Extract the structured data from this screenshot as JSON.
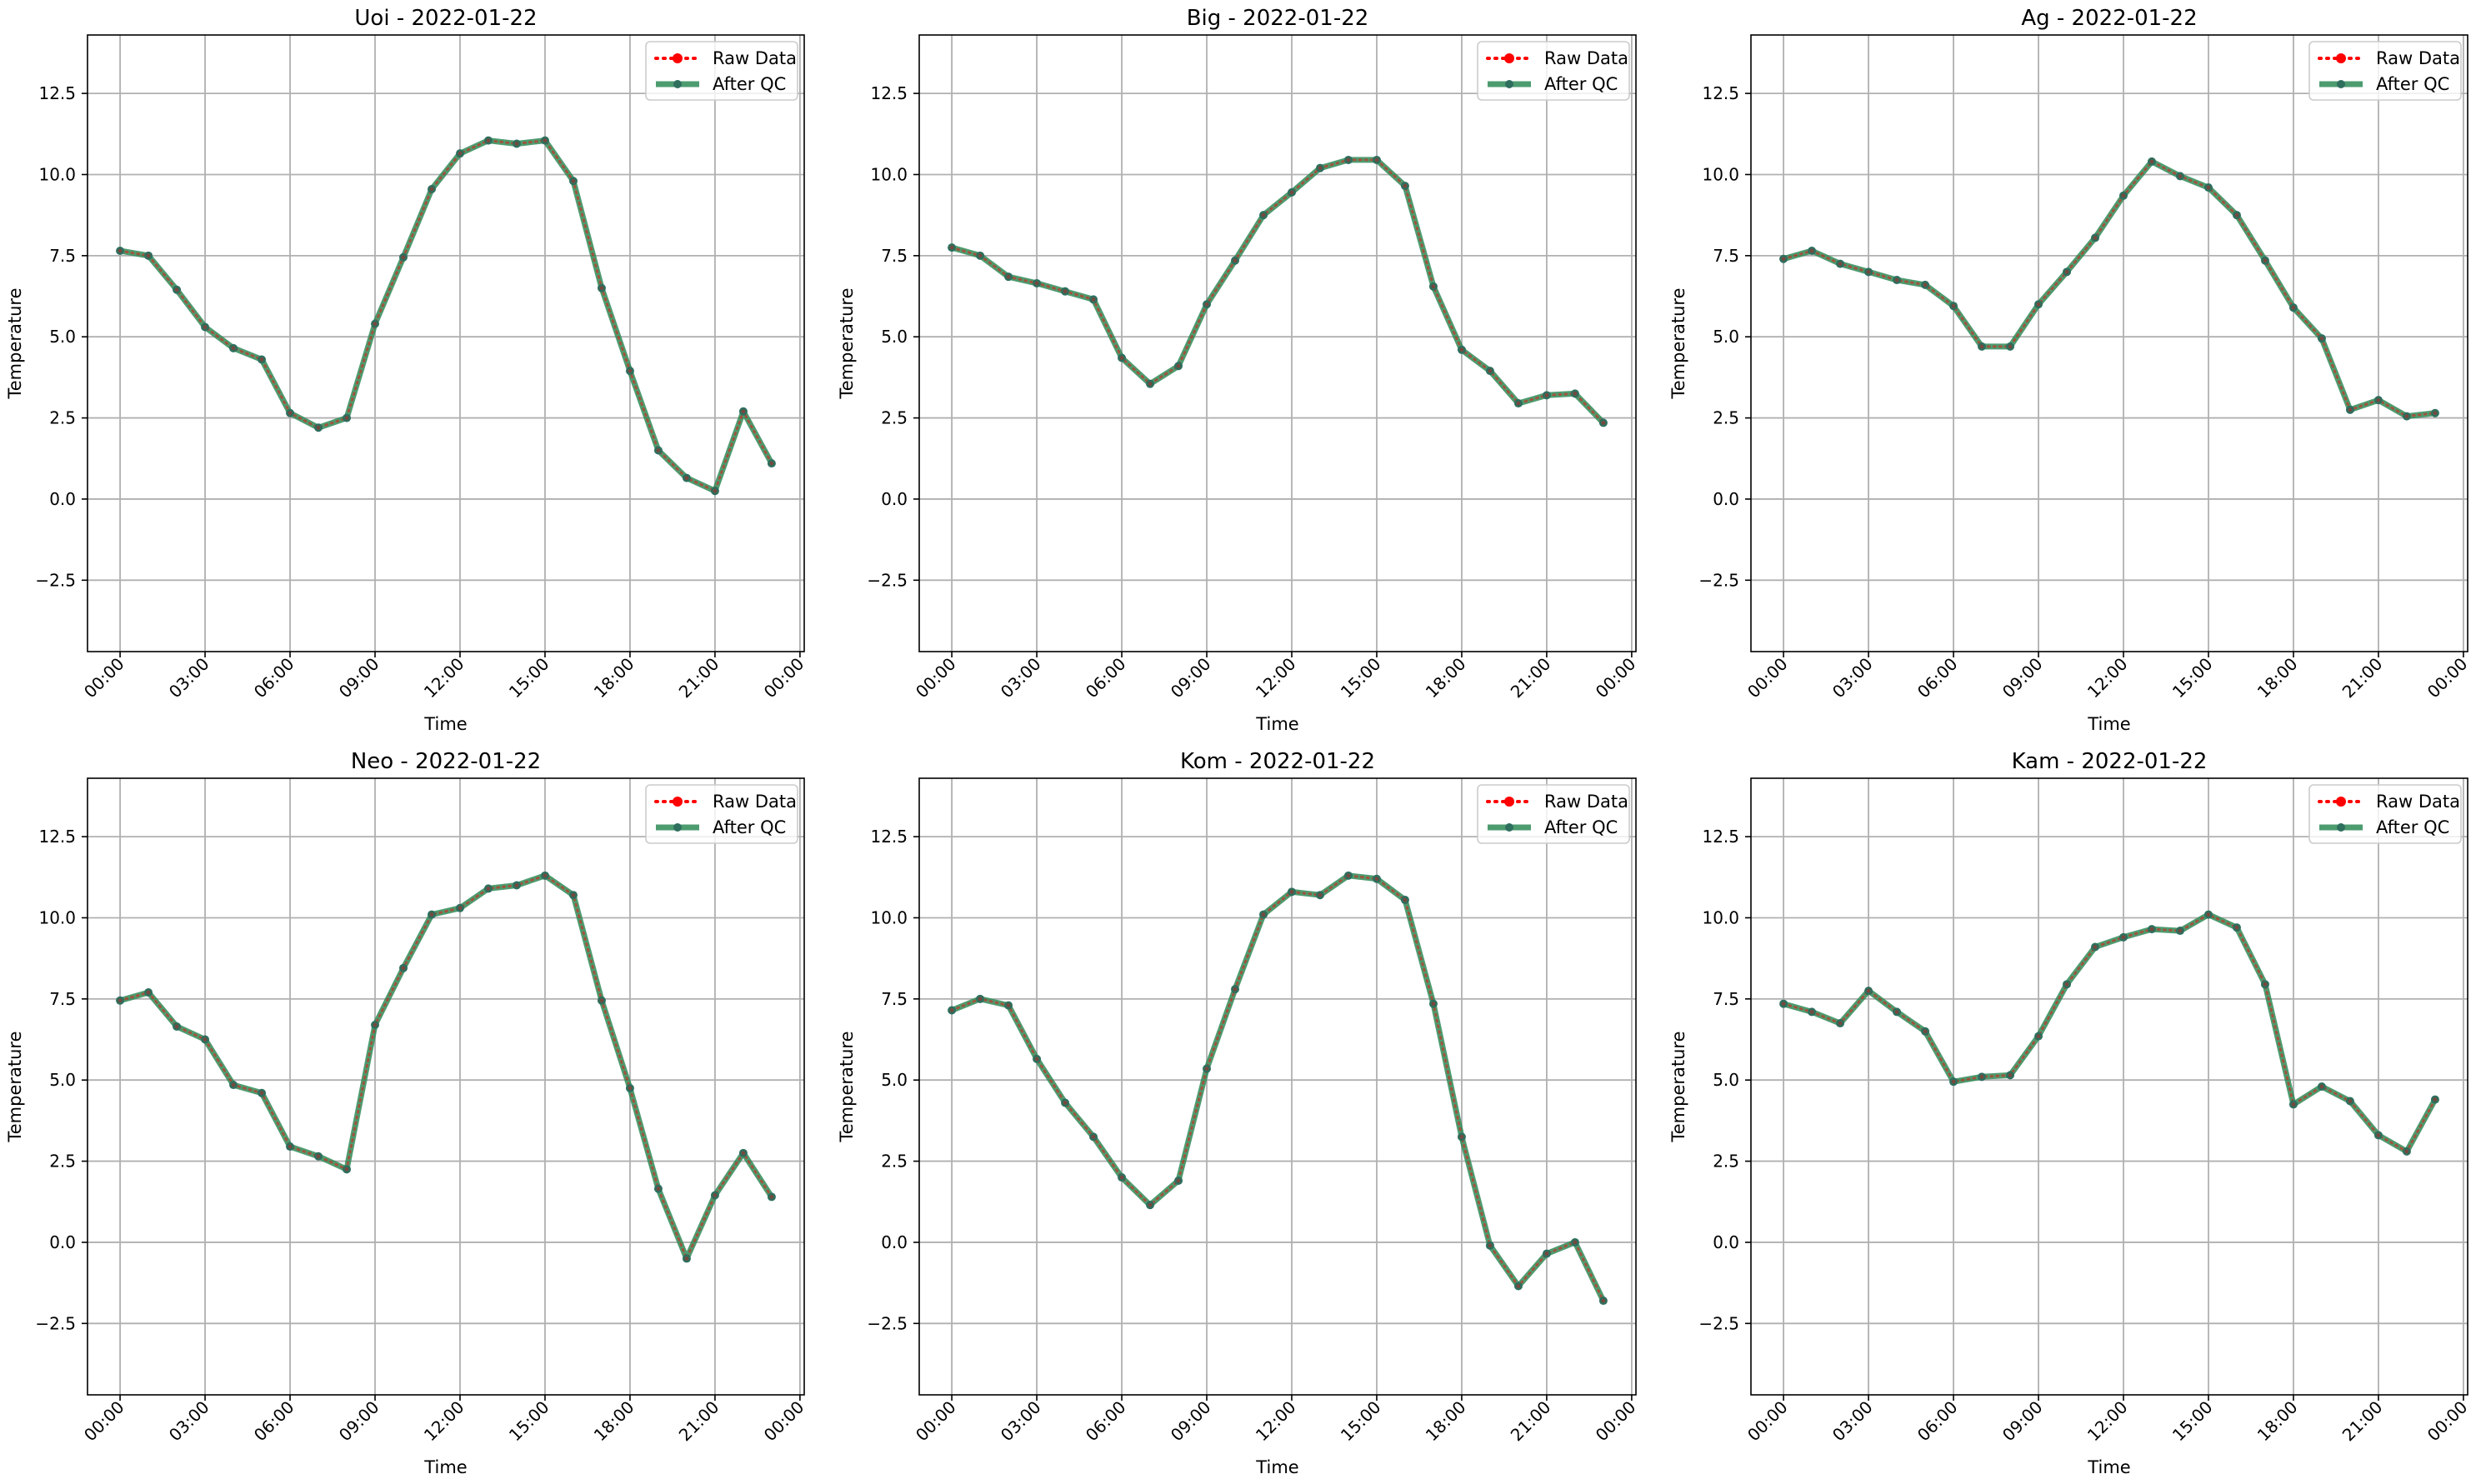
{
  "colors": {
    "raw": "#ff0000",
    "qc": "#2e8b57",
    "marker": "#2e6f5e",
    "grid": "#b0b0b0"
  },
  "chart_data": [
    {
      "type": "line",
      "title": "Uoi - 2022-01-22",
      "xlabel": "Time",
      "ylabel": "Temperature",
      "x_unit": "hour",
      "xticks": [
        "00:00",
        "03:00",
        "06:00",
        "09:00",
        "12:00",
        "15:00",
        "18:00",
        "21:00",
        "00:00"
      ],
      "yticks": [
        "−2.5",
        "0.0",
        "2.5",
        "5.0",
        "7.5",
        "10.0",
        "12.5"
      ],
      "ylim": [
        -4.7,
        14.3
      ],
      "xlim": [
        -1.15,
        24.15
      ],
      "grid": true,
      "legend_position": "top-right",
      "x": [
        0,
        1,
        2,
        3,
        4,
        5,
        6,
        7,
        8,
        9,
        10,
        11,
        12,
        13,
        14,
        15,
        16,
        17,
        18,
        19,
        20,
        21,
        22,
        23
      ],
      "series": [
        {
          "name": "Raw Data",
          "values": [
            7.65,
            7.5,
            6.45,
            5.3,
            4.65,
            4.3,
            2.65,
            2.2,
            2.5,
            5.4,
            7.45,
            9.55,
            10.65,
            11.05,
            10.95,
            11.05,
            9.8,
            6.5,
            3.95,
            1.5,
            0.65,
            0.25,
            2.7,
            1.1
          ]
        },
        {
          "name": "After QC",
          "values": [
            7.65,
            7.5,
            6.45,
            5.3,
            4.65,
            4.3,
            2.65,
            2.2,
            2.5,
            5.4,
            7.45,
            9.55,
            10.65,
            11.05,
            10.95,
            11.05,
            9.8,
            6.5,
            3.95,
            1.5,
            0.65,
            0.25,
            2.7,
            1.1
          ]
        }
      ]
    },
    {
      "type": "line",
      "title": "Big - 2022-01-22",
      "xlabel": "Time",
      "ylabel": "Temperature",
      "x_unit": "hour",
      "xticks": [
        "00:00",
        "03:00",
        "06:00",
        "09:00",
        "12:00",
        "15:00",
        "18:00",
        "21:00",
        "00:00"
      ],
      "yticks": [
        "−2.5",
        "0.0",
        "2.5",
        "5.0",
        "7.5",
        "10.0",
        "12.5"
      ],
      "ylim": [
        -4.7,
        14.3
      ],
      "xlim": [
        -1.15,
        24.15
      ],
      "grid": true,
      "legend_position": "top-right",
      "x": [
        0,
        1,
        2,
        3,
        4,
        5,
        6,
        7,
        8,
        9,
        10,
        11,
        12,
        13,
        14,
        15,
        16,
        17,
        18,
        19,
        20,
        21,
        22,
        23
      ],
      "series": [
        {
          "name": "Raw Data",
          "values": [
            7.75,
            7.5,
            6.85,
            6.65,
            6.4,
            6.15,
            4.35,
            3.55,
            4.1,
            6.0,
            7.35,
            8.75,
            9.45,
            10.2,
            10.45,
            10.45,
            9.65,
            6.55,
            4.6,
            3.95,
            2.95,
            3.2,
            3.25,
            2.35
          ]
        },
        {
          "name": "After QC",
          "values": [
            7.75,
            7.5,
            6.85,
            6.65,
            6.4,
            6.15,
            4.35,
            3.55,
            4.1,
            6.0,
            7.35,
            8.75,
            9.45,
            10.2,
            10.45,
            10.45,
            9.65,
            6.55,
            4.6,
            3.95,
            2.95,
            3.2,
            3.25,
            2.35
          ]
        }
      ]
    },
    {
      "type": "line",
      "title": "Ag - 2022-01-22",
      "xlabel": "Time",
      "ylabel": "Temperature",
      "x_unit": "hour",
      "xticks": [
        "00:00",
        "03:00",
        "06:00",
        "09:00",
        "12:00",
        "15:00",
        "18:00",
        "21:00",
        "00:00"
      ],
      "yticks": [
        "−2.5",
        "0.0",
        "2.5",
        "5.0",
        "7.5",
        "10.0",
        "12.5"
      ],
      "ylim": [
        -4.7,
        14.3
      ],
      "xlim": [
        -1.15,
        24.15
      ],
      "grid": true,
      "legend_position": "top-right",
      "x": [
        0,
        1,
        2,
        3,
        4,
        5,
        6,
        7,
        8,
        9,
        10,
        11,
        12,
        13,
        14,
        15,
        16,
        17,
        18,
        19,
        20,
        21,
        22,
        23
      ],
      "series": [
        {
          "name": "Raw Data",
          "values": [
            7.4,
            7.65,
            7.25,
            7.0,
            6.75,
            6.6,
            5.95,
            4.7,
            4.7,
            6.0,
            7.0,
            8.05,
            9.35,
            10.4,
            9.95,
            9.6,
            8.75,
            7.35,
            5.9,
            4.95,
            2.75,
            3.05,
            2.55,
            2.65
          ]
        },
        {
          "name": "After QC",
          "values": [
            7.4,
            7.65,
            7.25,
            7.0,
            6.75,
            6.6,
            5.95,
            4.7,
            4.7,
            6.0,
            7.0,
            8.05,
            9.35,
            10.4,
            9.95,
            9.6,
            8.75,
            7.35,
            5.9,
            4.95,
            2.75,
            3.05,
            2.55,
            2.65
          ]
        }
      ]
    },
    {
      "type": "line",
      "title": "Neo - 2022-01-22",
      "xlabel": "Time",
      "ylabel": "Temperature",
      "x_unit": "hour",
      "xticks": [
        "00:00",
        "03:00",
        "06:00",
        "09:00",
        "12:00",
        "15:00",
        "18:00",
        "21:00",
        "00:00"
      ],
      "yticks": [
        "−2.5",
        "0.0",
        "2.5",
        "5.0",
        "7.5",
        "10.0",
        "12.5"
      ],
      "ylim": [
        -4.7,
        14.3
      ],
      "xlim": [
        -1.15,
        24.15
      ],
      "grid": true,
      "legend_position": "top-right",
      "x": [
        0,
        1,
        2,
        3,
        4,
        5,
        6,
        7,
        8,
        9,
        10,
        11,
        12,
        13,
        14,
        15,
        16,
        17,
        18,
        19,
        20,
        21,
        22,
        23
      ],
      "series": [
        {
          "name": "Raw Data",
          "values": [
            7.45,
            7.7,
            6.65,
            6.25,
            4.85,
            4.6,
            2.95,
            2.65,
            2.25,
            6.7,
            8.45,
            10.1,
            10.3,
            10.9,
            11.0,
            11.3,
            10.7,
            7.45,
            4.75,
            1.65,
            -0.5,
            1.45,
            2.75,
            1.4
          ]
        },
        {
          "name": "After QC",
          "values": [
            7.45,
            7.7,
            6.65,
            6.25,
            4.85,
            4.6,
            2.95,
            2.65,
            2.25,
            6.7,
            8.45,
            10.1,
            10.3,
            10.9,
            11.0,
            11.3,
            10.7,
            7.45,
            4.75,
            1.65,
            -0.5,
            1.45,
            2.75,
            1.4
          ]
        }
      ]
    },
    {
      "type": "line",
      "title": "Kom - 2022-01-22",
      "xlabel": "Time",
      "ylabel": "Temperature",
      "x_unit": "hour",
      "xticks": [
        "00:00",
        "03:00",
        "06:00",
        "09:00",
        "12:00",
        "15:00",
        "18:00",
        "21:00",
        "00:00"
      ],
      "yticks": [
        "−2.5",
        "0.0",
        "2.5",
        "5.0",
        "7.5",
        "10.0",
        "12.5"
      ],
      "ylim": [
        -4.7,
        14.3
      ],
      "xlim": [
        -1.15,
        24.15
      ],
      "grid": true,
      "legend_position": "top-right",
      "x": [
        0,
        1,
        2,
        3,
        4,
        5,
        6,
        7,
        8,
        9,
        10,
        11,
        12,
        13,
        14,
        15,
        16,
        17,
        18,
        19,
        20,
        21,
        22,
        23
      ],
      "series": [
        {
          "name": "Raw Data",
          "values": [
            7.15,
            7.5,
            7.3,
            5.65,
            4.3,
            3.25,
            2.0,
            1.15,
            1.9,
            5.35,
            7.8,
            10.1,
            10.8,
            10.7,
            11.3,
            11.2,
            10.55,
            7.35,
            3.25,
            -0.1,
            -1.35,
            -0.35,
            0.0,
            -1.8
          ]
        },
        {
          "name": "After QC",
          "values": [
            7.15,
            7.5,
            7.3,
            5.65,
            4.3,
            3.25,
            2.0,
            1.15,
            1.9,
            5.35,
            7.8,
            10.1,
            10.8,
            10.7,
            11.3,
            11.2,
            10.55,
            7.35,
            3.25,
            -0.1,
            -1.35,
            -0.35,
            0.0,
            -1.8
          ]
        }
      ]
    },
    {
      "type": "line",
      "title": "Kam - 2022-01-22",
      "xlabel": "Time",
      "ylabel": "Temperature",
      "x_unit": "hour",
      "xticks": [
        "00:00",
        "03:00",
        "06:00",
        "09:00",
        "12:00",
        "15:00",
        "18:00",
        "21:00",
        "00:00"
      ],
      "yticks": [
        "−2.5",
        "0.0",
        "2.5",
        "5.0",
        "7.5",
        "10.0",
        "12.5"
      ],
      "ylim": [
        -4.7,
        14.3
      ],
      "xlim": [
        -1.15,
        24.15
      ],
      "grid": true,
      "legend_position": "top-right",
      "x": [
        0,
        1,
        2,
        3,
        4,
        5,
        6,
        7,
        8,
        9,
        10,
        11,
        12,
        13,
        14,
        15,
        16,
        17,
        18,
        19,
        20,
        21,
        22,
        23
      ],
      "series": [
        {
          "name": "Raw Data",
          "values": [
            7.35,
            7.1,
            6.75,
            7.75,
            7.1,
            6.5,
            4.95,
            5.1,
            5.15,
            6.35,
            7.95,
            9.1,
            9.4,
            9.65,
            9.6,
            10.1,
            9.7,
            7.95,
            4.25,
            4.8,
            4.35,
            3.3,
            2.8,
            4.4
          ]
        },
        {
          "name": "After QC",
          "values": [
            7.35,
            7.1,
            6.75,
            7.75,
            7.1,
            6.5,
            4.95,
            5.1,
            5.15,
            6.35,
            7.95,
            9.1,
            9.4,
            9.65,
            9.6,
            10.1,
            9.7,
            7.95,
            4.25,
            4.8,
            4.35,
            3.3,
            2.8,
            4.4
          ]
        }
      ]
    }
  ]
}
